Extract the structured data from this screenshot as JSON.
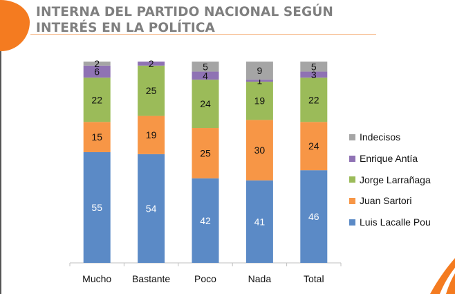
{
  "title": "INTERNA DEL PARTIDO NACIONAL SEGÚN INTERÉS EN LA POLÍTICA",
  "colors": {
    "accent": "#f47b20",
    "title": "#7f7f7f"
  },
  "chart_data": {
    "type": "bar",
    "stacked": true,
    "categories": [
      "Mucho",
      "Bastante",
      "Poco",
      "Nada",
      "Total"
    ],
    "series": [
      {
        "name": "Luis Lacalle Pou",
        "color": "#5b8ac6",
        "values": [
          55,
          54,
          42,
          41,
          46
        ]
      },
      {
        "name": "Juan Sartori",
        "color": "#f79646",
        "values": [
          15,
          19,
          25,
          30,
          24
        ]
      },
      {
        "name": "Jorge Larrañaga",
        "color": "#9bbb59",
        "values": [
          22,
          25,
          24,
          19,
          22
        ]
      },
      {
        "name": "Enrique Antía",
        "color": "#8f72b4",
        "values": [
          6,
          2,
          4,
          1,
          3
        ]
      },
      {
        "name": "Indecisos",
        "color": "#a5a5a5",
        "values": [
          2,
          0,
          5,
          9,
          5
        ]
      }
    ],
    "ylim": [
      0,
      100
    ],
    "grid": false,
    "legend_position": "right",
    "legend_order": [
      "Indecisos",
      "Enrique Antía",
      "Jorge Larrañaga",
      "Juan Sartori",
      "Luis Lacalle Pou"
    ]
  }
}
